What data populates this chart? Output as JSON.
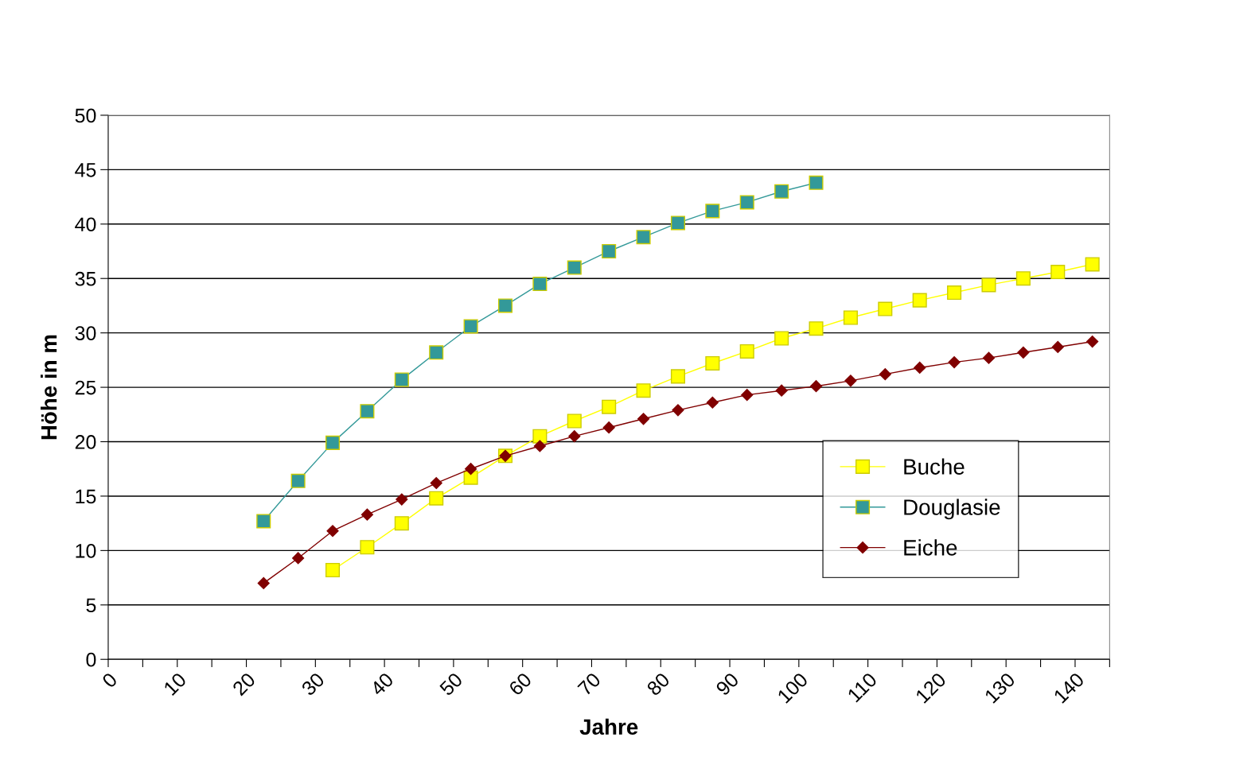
{
  "chart_data": {
    "type": "line",
    "xlabel": "Jahre",
    "ylabel": "Höhe in m",
    "xlim": [
      0,
      145
    ],
    "xticks": [
      0,
      {
        "value": 5,
        "label": null
      },
      10,
      {
        "value": 15,
        "label": null
      },
      20,
      {
        "value": 25,
        "label": null
      },
      30,
      {
        "value": 35,
        "label": null
      },
      40,
      {
        "value": 45,
        "label": null
      },
      50,
      {
        "value": 55,
        "label": null
      },
      60,
      {
        "value": 65,
        "label": null
      },
      70,
      {
        "value": 75,
        "label": null
      },
      80,
      {
        "value": 85,
        "label": null
      },
      90,
      {
        "value": 95,
        "label": null
      },
      100,
      {
        "value": 105,
        "label": null
      },
      110,
      {
        "value": 115,
        "label": null
      },
      120,
      {
        "value": 125,
        "label": null
      },
      130,
      {
        "value": 135,
        "label": null
      },
      140,
      {
        "value": 145,
        "label": null
      }
    ],
    "ylim": [
      0,
      50
    ],
    "yticks": [
      0,
      5,
      10,
      15,
      20,
      25,
      30,
      35,
      40,
      45,
      50
    ],
    "grid": "y",
    "legend": "lower right",
    "line_style": "solid",
    "series": [
      {
        "name": "Buche",
        "color": "#ffff00",
        "marker": "square",
        "x": [
          32.5,
          37.5,
          42.5,
          47.5,
          52.5,
          57.5,
          62.5,
          67.5,
          72.5,
          77.5,
          82.5,
          87.5,
          92.5,
          97.5,
          102.5,
          107.5,
          112.5,
          117.5,
          122.5,
          127.5,
          132.5,
          137.5,
          142.5
        ],
        "values": [
          8.2,
          10.3,
          12.5,
          14.8,
          16.7,
          18.7,
          20.5,
          21.9,
          23.2,
          24.7,
          26.0,
          27.2,
          28.3,
          29.5,
          30.4,
          31.4,
          32.2,
          33.0,
          33.7,
          34.4,
          35.0,
          35.6,
          36.3
        ]
      },
      {
        "name": "Douglasie",
        "color": "#339999",
        "marker": "square",
        "x": [
          22.5,
          27.5,
          32.5,
          37.5,
          42.5,
          47.5,
          52.5,
          57.5,
          62.5,
          67.5,
          72.5,
          77.5,
          82.5,
          87.5,
          92.5,
          97.5,
          102.5
        ],
        "values": [
          12.7,
          16.4,
          19.9,
          22.8,
          25.7,
          28.2,
          30.6,
          32.5,
          34.5,
          36.0,
          37.5,
          38.8,
          40.1,
          41.2,
          42.0,
          43.0,
          43.8
        ]
      },
      {
        "name": "Eiche",
        "color": "#800000",
        "marker": "diamond",
        "x": [
          22.5,
          27.5,
          32.5,
          37.5,
          42.5,
          47.5,
          52.5,
          57.5,
          62.5,
          67.5,
          72.5,
          77.5,
          82.5,
          87.5,
          92.5,
          97.5,
          102.5,
          107.5,
          112.5,
          117.5,
          122.5,
          127.5,
          132.5,
          137.5,
          142.5
        ],
        "values": [
          7.0,
          9.3,
          11.8,
          13.3,
          14.7,
          16.2,
          17.5,
          18.7,
          19.6,
          20.5,
          21.3,
          22.1,
          22.9,
          23.6,
          24.3,
          24.7,
          25.1,
          25.6,
          26.2,
          26.8,
          27.3,
          27.7,
          28.2,
          28.7,
          29.2
        ]
      }
    ]
  }
}
